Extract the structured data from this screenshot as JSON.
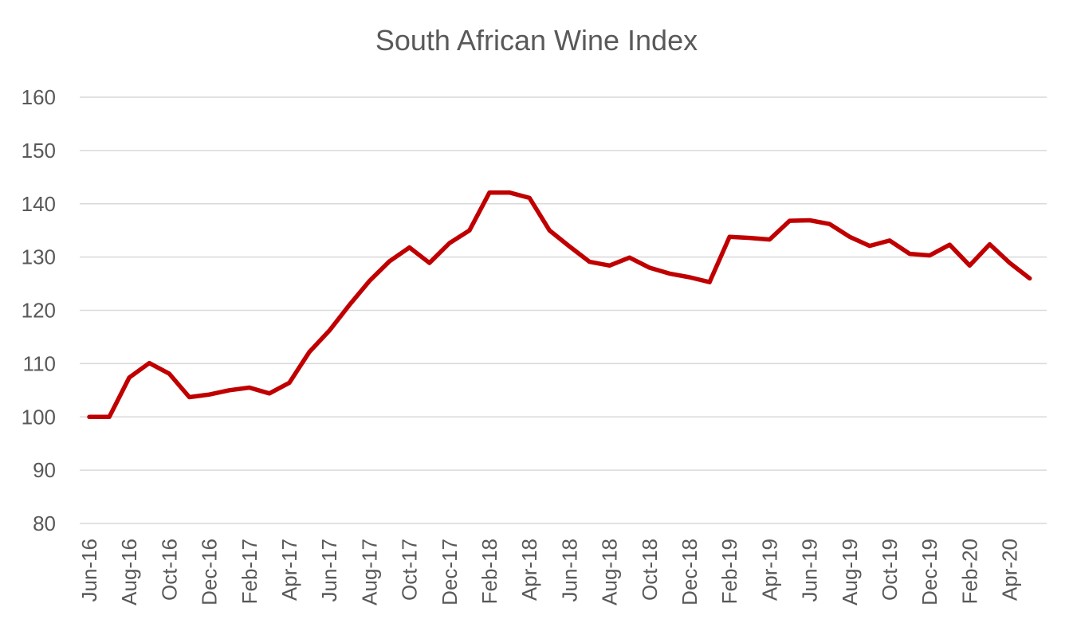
{
  "chart_data": {
    "type": "line",
    "title": "South African Wine Index",
    "xlabel": "",
    "ylabel": "",
    "ylim": [
      80,
      160
    ],
    "yticks": [
      80,
      90,
      100,
      110,
      120,
      130,
      140,
      150,
      160
    ],
    "grid": true,
    "legend": "none",
    "x": [
      "Jun-16",
      "Jul-16",
      "Aug-16",
      "Sep-16",
      "Oct-16",
      "Nov-16",
      "Dec-16",
      "Jan-17",
      "Feb-17",
      "Mar-17",
      "Apr-17",
      "May-17",
      "Jun-17",
      "Jul-17",
      "Aug-17",
      "Sep-17",
      "Oct-17",
      "Nov-17",
      "Dec-17",
      "Jan-18",
      "Feb-18",
      "Mar-18",
      "Apr-18",
      "May-18",
      "Jun-18",
      "Jul-18",
      "Aug-18",
      "Sep-18",
      "Oct-18",
      "Nov-18",
      "Dec-18",
      "Jan-19",
      "Feb-19",
      "Mar-19",
      "Apr-19",
      "May-19",
      "Jun-19",
      "Jul-19",
      "Aug-19",
      "Sep-19",
      "Oct-19",
      "Nov-19",
      "Dec-19",
      "Jan-20",
      "Feb-20",
      "Mar-20",
      "Apr-20",
      "May-20"
    ],
    "tick_labels": [
      "Jun-16",
      "Aug-16",
      "Oct-16",
      "Dec-16",
      "Feb-17",
      "Apr-17",
      "Jun-17",
      "Aug-17",
      "Oct-17",
      "Dec-17",
      "Feb-18",
      "Apr-18",
      "Jun-18",
      "Aug-18",
      "Oct-18",
      "Dec-18",
      "Feb-19",
      "Apr-19",
      "Jun-19",
      "Aug-19",
      "Oct-19",
      "Dec-19",
      "Feb-20",
      "Apr-20"
    ],
    "series": [
      {
        "name": "",
        "color": "#C00000",
        "values": [
          100,
          100,
          107.4,
          110.1,
          108.1,
          103.7,
          104.2,
          105.0,
          105.5,
          104.4,
          106.4,
          112.2,
          116.2,
          121.0,
          125.5,
          129.2,
          131.8,
          128.9,
          132.6,
          135.0,
          142.1,
          142.1,
          141.1,
          135.0,
          132.0,
          129.1,
          128.4,
          129.9,
          128.0,
          126.9,
          126.2,
          125.3,
          133.8,
          133.6,
          133.3,
          136.8,
          136.9,
          136.2,
          133.8,
          132.1,
          133.1,
          130.6,
          130.3,
          132.3,
          128.4,
          132.4,
          128.9,
          126.0
        ]
      }
    ]
  }
}
